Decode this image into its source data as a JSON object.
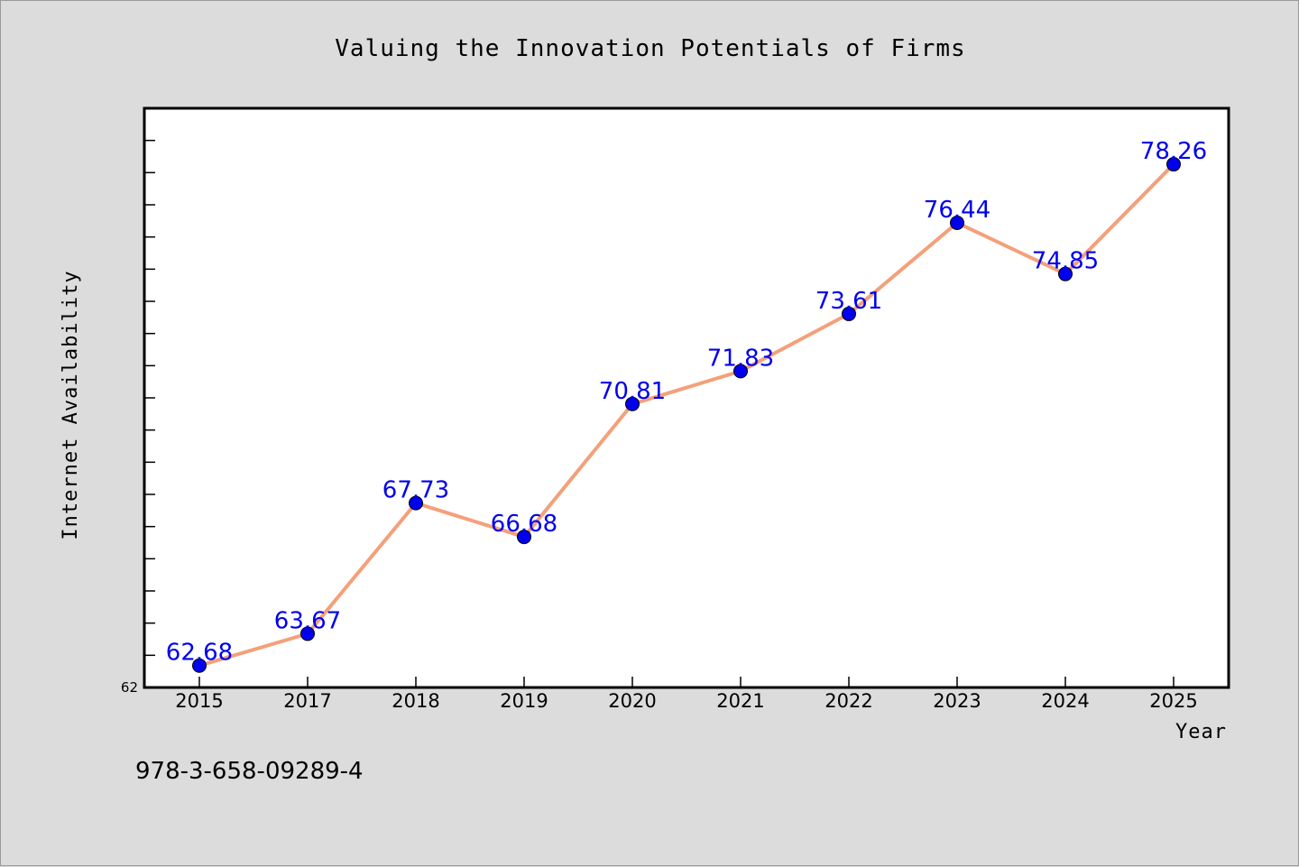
{
  "chart_data": {
    "type": "line",
    "title": "Valuing the Innovation Potentials of Firms",
    "xlabel": "Year",
    "ylabel": "Internet Availability",
    "categories": [
      "2015",
      "2017",
      "2018",
      "2019",
      "2020",
      "2021",
      "2022",
      "2023",
      "2024",
      "2025"
    ],
    "series": [
      {
        "values": [
          62.68,
          63.67,
          67.73,
          66.68,
          70.81,
          71.83,
          73.61,
          76.44,
          74.85,
          78.26
        ],
        "data_labels": [
          "62.68",
          "63.67",
          "67.73",
          "66.68",
          "70.81",
          "71.83",
          "73.61",
          "76.44",
          "74.85",
          "78.26"
        ],
        "line_color": "#f4a07a",
        "marker_color": "#0000ee"
      }
    ],
    "ylim": [
      62,
      80
    ],
    "y_min_label": "62",
    "grid": false,
    "legend": "none",
    "background": "#dcdcdc",
    "plot_background": "#ffffff"
  },
  "footnote": "978-3-658-09289-4"
}
